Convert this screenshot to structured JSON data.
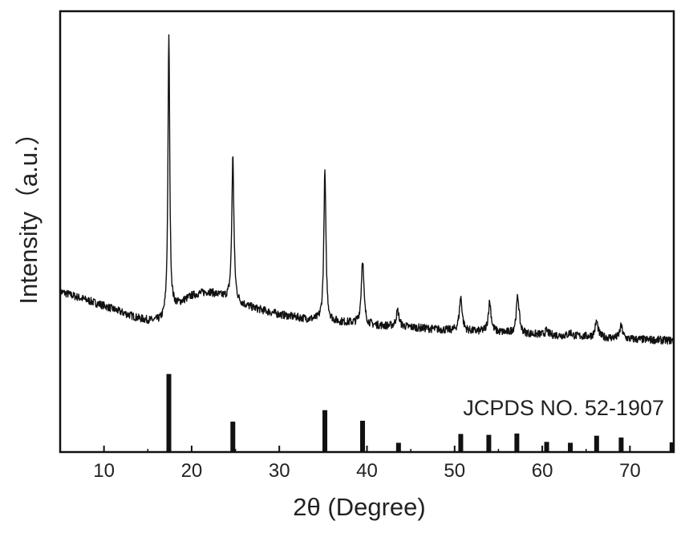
{
  "chart_data": {
    "type": "line",
    "title": "",
    "xlabel": "2θ (Degree)",
    "ylabel": "Intensity（a.u.）",
    "xlim": [
      5,
      75
    ],
    "ylim": [
      0,
      100
    ],
    "x_ticks": [
      10,
      20,
      30,
      40,
      50,
      60,
      70
    ],
    "x_tick_labels": [
      "10",
      "20",
      "30",
      "40",
      "50",
      "60",
      "70"
    ],
    "y_ticks_shown": false,
    "grid": false,
    "legend": "none",
    "line_color": "#111111",
    "pattern": {
      "baseline": [
        [
          5,
          36.4
        ],
        [
          8,
          34.5
        ],
        [
          10,
          33.2
        ],
        [
          12,
          31.7
        ],
        [
          14,
          30.3
        ],
        [
          15.5,
          29.7
        ],
        [
          16.5,
          29.8
        ],
        [
          17.0,
          30.5
        ],
        [
          18.0,
          32.8
        ],
        [
          19,
          34.1
        ],
        [
          20,
          35.4
        ],
        [
          21,
          36.0
        ],
        [
          22,
          36.3
        ],
        [
          23,
          35.6
        ],
        [
          24,
          34.9
        ],
        [
          25.5,
          33.6
        ],
        [
          27,
          32.7
        ],
        [
          30,
          31.2
        ],
        [
          33,
          30.2
        ],
        [
          35,
          29.7
        ],
        [
          38,
          29.3
        ],
        [
          40,
          28.8
        ],
        [
          45,
          28.3
        ],
        [
          50,
          27.5
        ],
        [
          55,
          27.1
        ],
        [
          60,
          26.6
        ],
        [
          65,
          26.2
        ],
        [
          70,
          25.6
        ],
        [
          75,
          25.3
        ]
      ],
      "peaks": [
        {
          "two_theta": 17.4,
          "height": 63.5,
          "width": 0.15
        },
        {
          "two_theta": 24.7,
          "height": 32.8,
          "width": 0.18
        },
        {
          "two_theta": 35.2,
          "height": 34.0,
          "width": 0.18
        },
        {
          "two_theta": 39.5,
          "height": 14.8,
          "width": 0.22
        },
        {
          "two_theta": 43.5,
          "height": 3.6,
          "width": 0.25
        },
        {
          "two_theta": 50.7,
          "height": 7.6,
          "width": 0.25
        },
        {
          "two_theta": 54.0,
          "height": 6.8,
          "width": 0.25
        },
        {
          "two_theta": 57.2,
          "height": 8.4,
          "width": 0.25
        },
        {
          "two_theta": 60.5,
          "height": 1.0,
          "width": 0.25
        },
        {
          "two_theta": 63.2,
          "height": 0.8,
          "width": 0.25
        },
        {
          "two_theta": 66.2,
          "height": 3.6,
          "width": 0.25
        },
        {
          "two_theta": 69.0,
          "height": 2.8,
          "width": 0.25
        }
      ],
      "noise_amplitude": 0.9
    },
    "reference": {
      "label": "JCPDS NO. 52-1907",
      "bar_color": "#111111",
      "sticks": [
        {
          "two_theta": 17.4,
          "height": 17.7
        },
        {
          "two_theta": 24.7,
          "height": 6.9
        },
        {
          "two_theta": 35.2,
          "height": 9.5
        },
        {
          "two_theta": 39.5,
          "height": 7.1
        },
        {
          "two_theta": 43.6,
          "height": 2.1
        },
        {
          "two_theta": 50.7,
          "height": 4.1
        },
        {
          "two_theta": 53.9,
          "height": 3.9
        },
        {
          "two_theta": 57.1,
          "height": 4.2
        },
        {
          "two_theta": 60.5,
          "height": 2.3
        },
        {
          "two_theta": 63.2,
          "height": 2.1
        },
        {
          "two_theta": 66.2,
          "height": 3.7
        },
        {
          "two_theta": 69.0,
          "height": 3.3
        },
        {
          "two_theta": 74.8,
          "height": 2.2
        }
      ]
    }
  }
}
